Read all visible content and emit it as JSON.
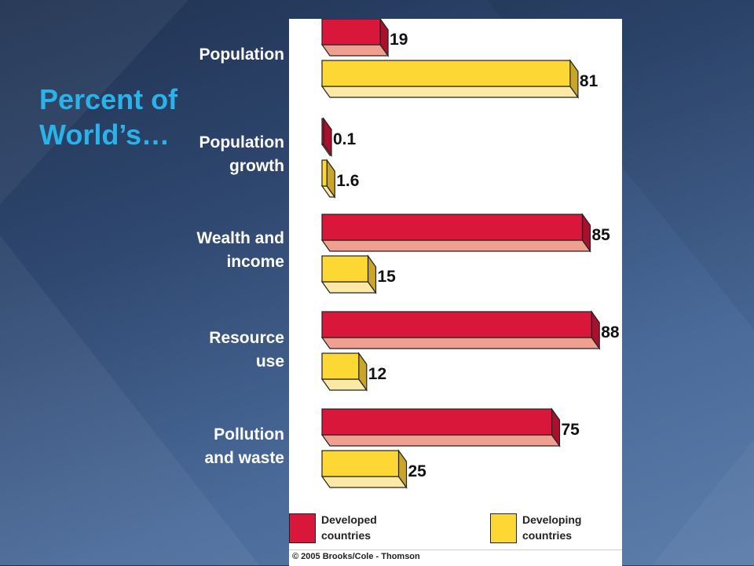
{
  "slide": {
    "title": "Percent of World’s…"
  },
  "legend": {
    "developed": "Developed\ncountries",
    "developing": "Developing\ncountries"
  },
  "credit": "© 2005 Brooks/Cole - Thomson",
  "colors": {
    "developed_front": "#d9173a",
    "developed_bottom": "#f0a090",
    "developed_side": "#a8102c",
    "developing_front": "#fdd835",
    "developing_bottom": "#fde9a6",
    "developing_side": "#c9a52a"
  },
  "chart_data": {
    "type": "bar",
    "orientation": "horizontal",
    "title": "Percent of World’s…",
    "categories": [
      "Population",
      "Population\ngrowth",
      "Wealth and\nincome",
      "Resource\nuse",
      "Pollution\nand waste"
    ],
    "series": [
      {
        "name": "Developed countries",
        "values": [
          19,
          0.1,
          85,
          88,
          75
        ],
        "labels": [
          "19",
          "0.1",
          "85",
          "88",
          "75"
        ]
      },
      {
        "name": "Developing countries",
        "values": [
          81,
          1.6,
          15,
          12,
          25
        ],
        "labels": [
          "81",
          "1.6",
          "15",
          "12",
          "25"
        ]
      }
    ],
    "xlim": [
      0,
      100
    ],
    "legend": "bottom"
  }
}
